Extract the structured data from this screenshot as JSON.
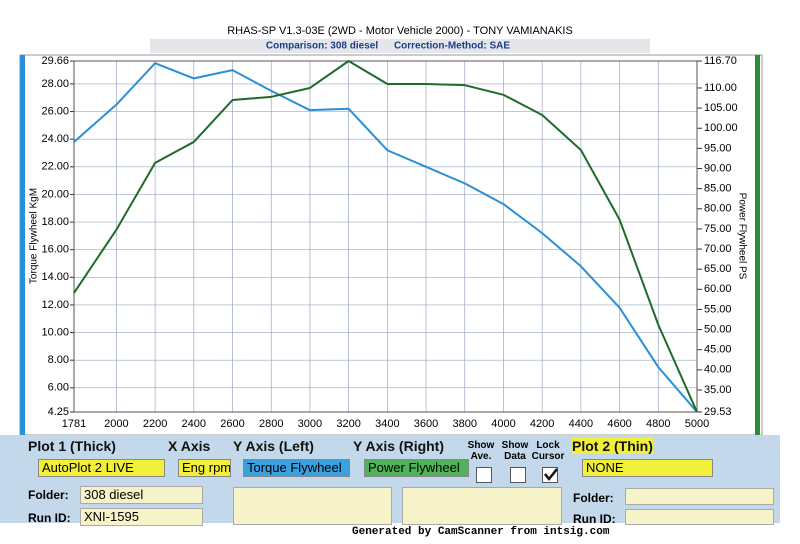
{
  "chart_data": {
    "type": "line",
    "title": "RHAS-SP V1.3-03E  (2WD - Motor Vehicle 2000) - TONY VAMIANAKIS",
    "subtitle": [
      "Comparison: 308 diesel",
      "Correction-Method: SAE"
    ],
    "y_label": "Torque Flywheel KgM",
    "y2_label": "Power Flywheel PS",
    "x": [
      1781,
      2000,
      2200,
      2400,
      2600,
      2800,
      3000,
      3200,
      3400,
      3600,
      3800,
      4000,
      4200,
      4400,
      4600,
      4800,
      5000
    ],
    "xlim": [
      1781,
      5000
    ],
    "xticks": [
      1781,
      2000,
      2200,
      2400,
      2600,
      2800,
      3000,
      3200,
      3400,
      3600,
      3800,
      4000,
      4200,
      4400,
      4600,
      4800,
      5000
    ],
    "ylim": [
      4.25,
      29.66
    ],
    "yticks": [
      4.25,
      {
        "value": 6,
        "label": "6.00"
      },
      {
        "value": 8,
        "label": "8.00"
      },
      {
        "value": 10,
        "label": "10.00"
      },
      {
        "value": 12,
        "label": "12.00"
      },
      {
        "value": 14,
        "label": "14.00"
      },
      {
        "value": 16,
        "label": "16.00"
      },
      {
        "value": 18,
        "label": "18.00"
      },
      {
        "value": 20,
        "label": "20.00"
      },
      {
        "value": 22,
        "label": "22.00"
      },
      {
        "value": 24,
        "label": "24.00"
      },
      {
        "value": 26,
        "label": "26.00"
      },
      {
        "value": 28,
        "label": "28.00"
      },
      29.66
    ],
    "y2lim": [
      29.53,
      116.7
    ],
    "y2ticks": [
      29.53,
      {
        "value": 35,
        "label": "35.00"
      },
      {
        "value": 40,
        "label": "40.00"
      },
      {
        "value": 45,
        "label": "45.00"
      },
      {
        "value": 50,
        "label": "50.00"
      },
      {
        "value": 55,
        "label": "55.00"
      },
      {
        "value": 60,
        "label": "60.00"
      },
      {
        "value": 65,
        "label": "65.00"
      },
      {
        "value": 70,
        "label": "70.00"
      },
      {
        "value": 75,
        "label": "75.00"
      },
      {
        "value": 80,
        "label": "80.00"
      },
      {
        "value": 85,
        "label": "85.00"
      },
      {
        "value": 90,
        "label": "90.00"
      },
      {
        "value": 95,
        "label": "95.00"
      },
      {
        "value": 100,
        "label": "100.00"
      },
      {
        "value": 105,
        "label": "105.00"
      },
      {
        "value": 110,
        "label": "110.00"
      },
      {
        "value": 116.7,
        "label": "116.70"
      }
    ],
    "grid": true,
    "series": [
      {
        "name": "Torque Flywheel",
        "color": "#2a8fd6",
        "values": [
          23.8,
          26.5,
          29.5,
          28.4,
          29.0,
          27.5,
          26.1,
          26.2,
          23.2,
          22.0,
          20.8,
          19.3,
          17.2,
          14.8,
          11.8,
          7.5,
          4.25
        ]
      },
      {
        "name": "Power Flywheel",
        "color": "#1f6b2a",
        "axis": "y2",
        "values": [
          59.1,
          74.8,
          91.4,
          96.6,
          107.0,
          107.8,
          110.0,
          116.7,
          111.0,
          111.0,
          110.7,
          108.3,
          103.3,
          94.6,
          77.3,
          51.2,
          29.53
        ]
      }
    ]
  },
  "ui": {
    "plot1_header": "Plot 1 (Thick)",
    "x_axis_header": "X Axis",
    "y_left_header": "Y Axis (Left)",
    "y_right_header": "Y Axis (Right)",
    "show_ave": "Show Ave.",
    "show_data": "Show Data",
    "lock_cursor": "Lock Cursor",
    "plot2_header": "Plot 2 (Thin)",
    "plot1_value": "AutoPlot 2 LIVE",
    "x_axis_value": "Eng rpm",
    "plot2_value": "NONE",
    "show_ave_checked": false,
    "show_data_checked": false,
    "lock_cursor_checked": true,
    "folder_label": "Folder:",
    "folder_value": "308 diesel",
    "run_id_label": "Run ID:",
    "run_id_value": "XNI-1595",
    "folder2_label": "Folder:",
    "run_id2_label": "Run ID:",
    "footer": "Generated by CamScanner from intsig.com"
  }
}
